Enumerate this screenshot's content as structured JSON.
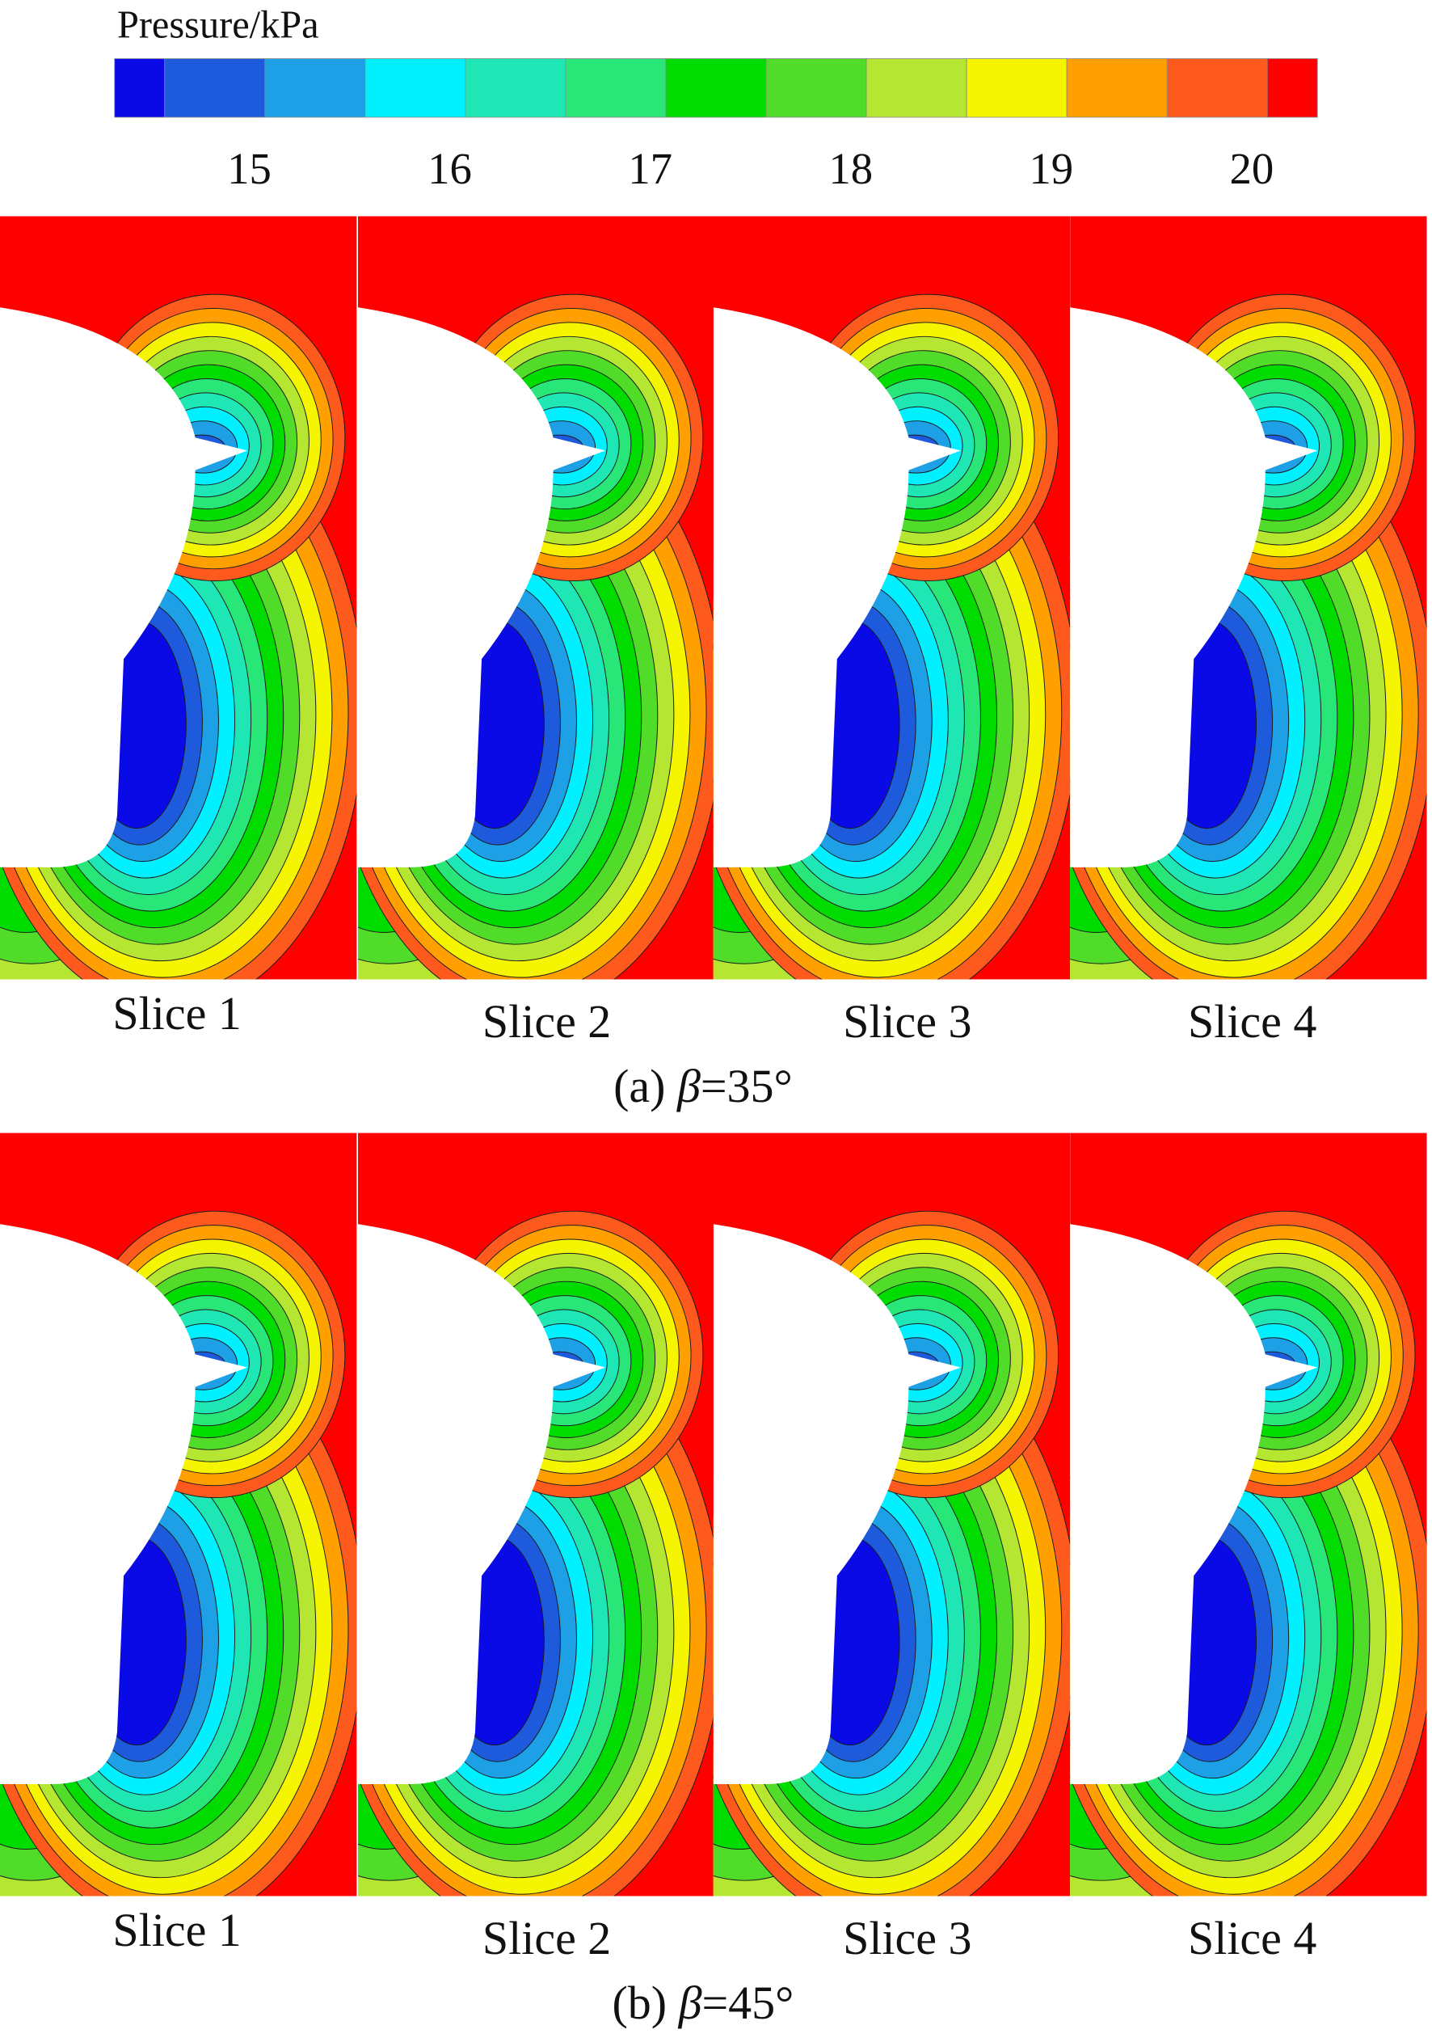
{
  "colorbar": {
    "title": "Pressure/kPa",
    "lim": [
      14.25,
      20.25
    ],
    "levels": [
      14.5,
      15,
      15.5,
      16,
      16.5,
      17,
      17.5,
      18,
      18.5,
      19,
      19.5,
      20
    ],
    "ticks": [
      15,
      16,
      17,
      18,
      19,
      20
    ],
    "colors": [
      "#0a0ae6",
      "#1e5adc",
      "#1ea0e6",
      "#00f0ff",
      "#1ee6b4",
      "#28e678",
      "#00dc00",
      "#50dc28",
      "#b4e632",
      "#f5f500",
      "#ffa000",
      "#ff5a1e",
      "#ff0000"
    ]
  },
  "panels": [
    {
      "label": "(a) ",
      "symbol": "β",
      "value": "=35°",
      "slices": [
        "Slice 1",
        "Slice 2",
        "Slice 3",
        "Slice 4"
      ]
    },
    {
      "label": "(b) ",
      "symbol": "β",
      "value": "=45°",
      "slices": [
        "Slice 1",
        "Slice 2",
        "Slice 3",
        "Slice 4"
      ]
    }
  ]
}
